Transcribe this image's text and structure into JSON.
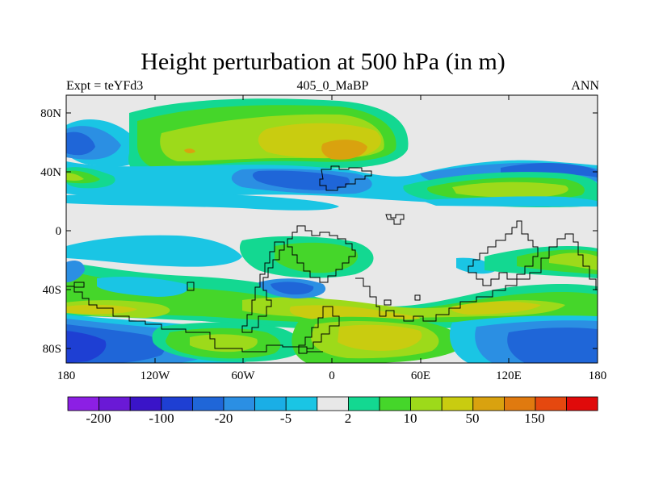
{
  "title": "Height perturbation at 500 hPa (in m)",
  "left_string": "Expt = teYFd3",
  "center_string": "405_0_MaBP",
  "right_string": "ANN",
  "x_ticks": [
    "180",
    "120W",
    "60W",
    "0",
    "60E",
    "120E",
    "180"
  ],
  "y_ticks": [
    "80N",
    "40N",
    "0",
    "40S",
    "80S"
  ],
  "colorbar": {
    "colors": [
      "#8c1fe4",
      "#6a19d6",
      "#3a14c8",
      "#1e3fd3",
      "#1f66d8",
      "#2b8fe3",
      "#1aaee6",
      "#1ac5e4",
      "#e8e8e8",
      "#13d891",
      "#45d62a",
      "#9dda1a",
      "#c9cc10",
      "#d9a20f",
      "#e07a0f",
      "#e5480f",
      "#e00a0a"
    ],
    "labels": [
      "-200",
      "-100",
      "-20",
      "-5",
      "2",
      "10",
      "50",
      "150"
    ]
  },
  "land_color": "#e8e8e8"
}
